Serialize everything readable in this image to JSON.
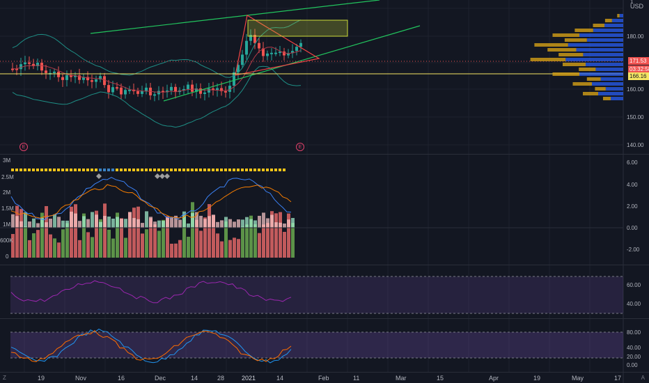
{
  "currency": "USD",
  "top_label": "1",
  "price_axis": [
    "180.00",
    "160.00",
    "150.00",
    "140.00"
  ],
  "price_tags": {
    "last": "171.53",
    "countdown": "03:32:58",
    "line": "166.16"
  },
  "volume_axis_left": [
    "3M",
    "2.5M",
    "2M",
    "1.5M",
    "1M",
    "600K",
    "0"
  ],
  "osc_axis_right": [
    "6.00",
    "4.00",
    "2.00",
    "0.00",
    "-2.00"
  ],
  "rsi_axis": [
    "60.00",
    "40.00"
  ],
  "stoch_axis": [
    "80.00",
    "40.00",
    "20.00",
    "0.00"
  ],
  "x_axis": [
    "19",
    "Nov",
    "16",
    "Dec",
    "14",
    "28",
    "2021",
    "14",
    "Feb",
    "11",
    "Mar",
    "15",
    "Apr",
    "19",
    "May",
    "17"
  ],
  "earnings_marker": "E",
  "corner_left": "Z",
  "corner_right": "A",
  "colors": {
    "up": "#26a69a",
    "down": "#ef5350",
    "trend": "#22c55e",
    "wedge": "#ef4444",
    "hline": "#f5e663",
    "rsi": "#9c27b0"
  }
}
